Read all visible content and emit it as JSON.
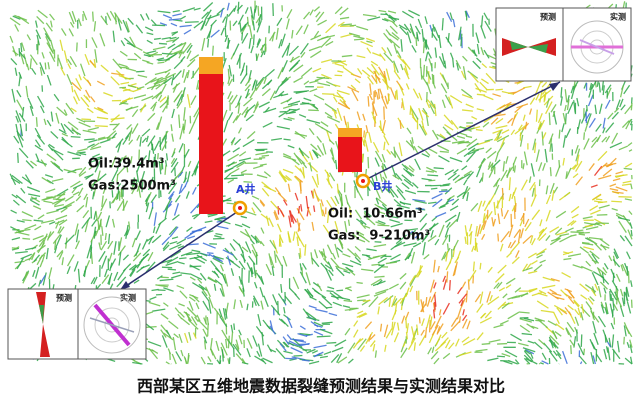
{
  "caption": "西部某区五维地震数据裂缝预测结果与实测结果对比",
  "wells": [
    {
      "label": "A井",
      "oil": "Oil:39.4m³",
      "gas": "Gas:2500m³"
    },
    {
      "label": "B井",
      "oil": "Oil:  10.66m³",
      "gas": "Gas:  9-210m³"
    }
  ],
  "insets": [
    {
      "predicted_label": "预测",
      "measured_label": "实测"
    },
    {
      "predicted_label": "预测",
      "measured_label": "实测"
    }
  ]
}
